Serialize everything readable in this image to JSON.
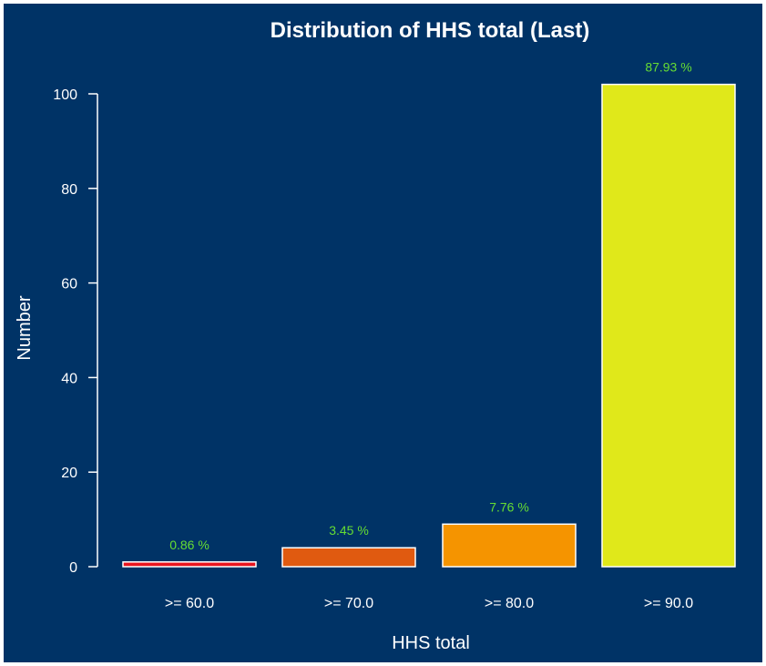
{
  "chart_data": {
    "type": "bar",
    "title": "Distribution of HHS total (Last)",
    "xlabel": "HHS total",
    "ylabel": "Number",
    "categories": [
      ">= 60.0",
      ">= 70.0",
      ">= 80.0",
      ">= 90.0"
    ],
    "values": [
      1,
      4,
      9,
      102
    ],
    "data_labels": [
      "0.86 %",
      "3.45 %",
      "7.76 %",
      "87.93 %"
    ],
    "bar_colors": [
      "#e8141e",
      "#e05a10",
      "#f59400",
      "#e0e81a"
    ],
    "ylim": [
      0,
      102
    ],
    "yticks": [
      0,
      20,
      40,
      60,
      80,
      100
    ],
    "grid": false,
    "legend": "none"
  },
  "colors": {
    "background": "#003366",
    "foreground": "#ffffff",
    "data_label": "#66dd33",
    "bar_outline": "#ffffff"
  }
}
